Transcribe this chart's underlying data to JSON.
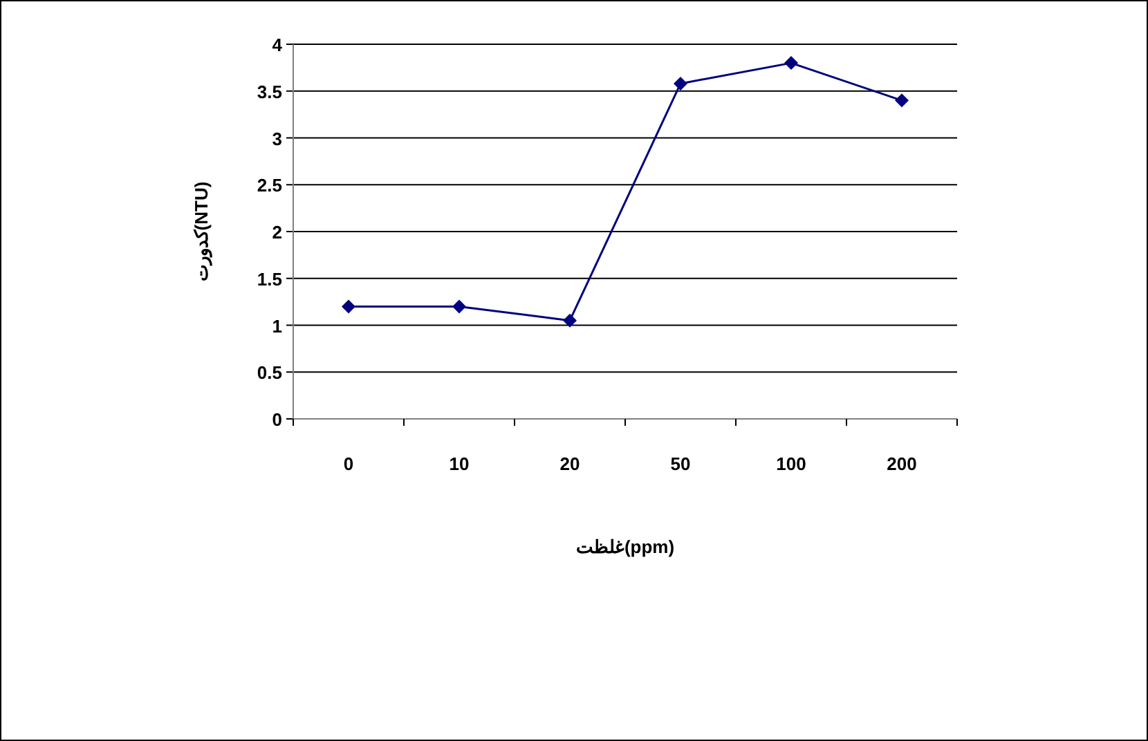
{
  "chart_data": {
    "type": "line",
    "xlabel": "غلظت(ppm)",
    "ylabel": "کدورت(NTU)",
    "categories": [
      "0",
      "10",
      "20",
      "50",
      "100",
      "200"
    ],
    "series": [
      {
        "color": "#000080",
        "values": [
          1.2,
          1.2,
          1.05,
          3.58,
          3.8,
          3.4
        ]
      }
    ],
    "ylim": [
      0,
      4
    ],
    "yticks": [
      0,
      0.5,
      1,
      1.5,
      2,
      2.5,
      3,
      3.5,
      4
    ],
    "grid": "y",
    "marker": "diamond",
    "line_style": "solid"
  }
}
